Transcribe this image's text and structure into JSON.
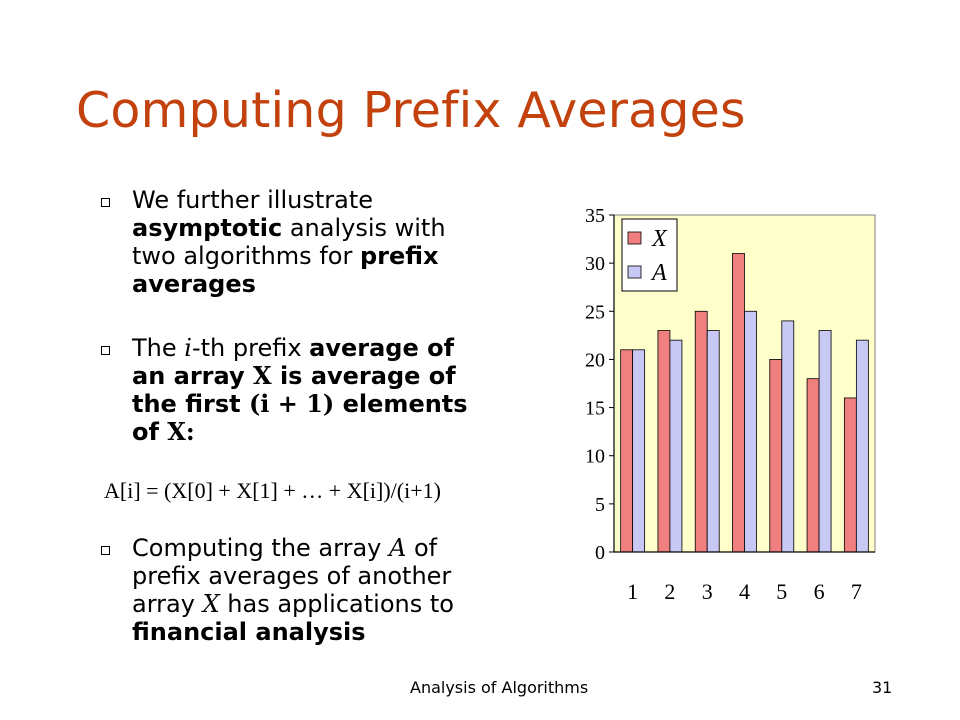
{
  "slide": {
    "title": "Computing Prefix Averages",
    "bullets": [
      {
        "lines": [
          [
            {
              "t": "We further illustrate"
            }
          ],
          [
            {
              "t": "asymptotic",
              "s": "b"
            },
            {
              "t": " analysis with"
            }
          ],
          [
            {
              "t": "two algorithms for "
            },
            {
              "t": "prefix",
              "s": "b"
            }
          ],
          [
            {
              "t": "averages",
              "s": "b"
            }
          ]
        ]
      },
      {
        "lines": [
          [
            {
              "t": "The "
            },
            {
              "t": "i",
              "s": "serif-i"
            },
            {
              "t": "-th prefix "
            },
            {
              "t": "average of",
              "s": "b"
            }
          ],
          [
            {
              "t": "an array ",
              "s": "b"
            },
            {
              "t": "X",
              "s": "serif-b"
            },
            {
              "t": " is average of",
              "s": "b"
            }
          ],
          [
            {
              "t": "the first ",
              "s": "b"
            },
            {
              "t": "(i + 1)",
              "s": "serif-b"
            },
            {
              "t": " elements",
              "s": "b"
            }
          ],
          [
            {
              "t": "of ",
              "s": "b"
            },
            {
              "t": "X:",
              "s": "serif-b"
            }
          ]
        ]
      },
      {
        "lines": [
          [
            {
              "t": "Computing the array "
            },
            {
              "t": "A",
              "s": "serif-i"
            },
            {
              "t": " of"
            }
          ],
          [
            {
              "t": "prefix averages of another"
            }
          ],
          [
            {
              "t": "array "
            },
            {
              "t": "X",
              "s": "serif-i"
            },
            {
              "t": " has applications to"
            }
          ],
          [
            {
              "t": "financial analysis",
              "s": "b"
            }
          ]
        ]
      }
    ],
    "formula": "A[i] = (X[0] + X[1] + … + X[i])/(i+1)",
    "footer_title": "Analysis of Algorithms",
    "page_number": "31"
  },
  "colors": {
    "title": "#c2410c",
    "plot_bg": "#ffffcc",
    "series_x": "#f08080",
    "series_a": "#c8c8f5"
  },
  "chart_data": {
    "type": "bar",
    "categories": [
      "1",
      "2",
      "3",
      "4",
      "5",
      "6",
      "7"
    ],
    "series": [
      {
        "name": "X",
        "values": [
          21,
          23,
          25,
          31,
          20,
          18,
          16
        ]
      },
      {
        "name": "A",
        "values": [
          21,
          22,
          23,
          25,
          24,
          23,
          22
        ]
      }
    ],
    "ylim": [
      0,
      35
    ],
    "yticks": [
      0,
      5,
      10,
      15,
      20,
      25,
      30,
      35
    ],
    "legend": "top-left",
    "grid": false
  }
}
